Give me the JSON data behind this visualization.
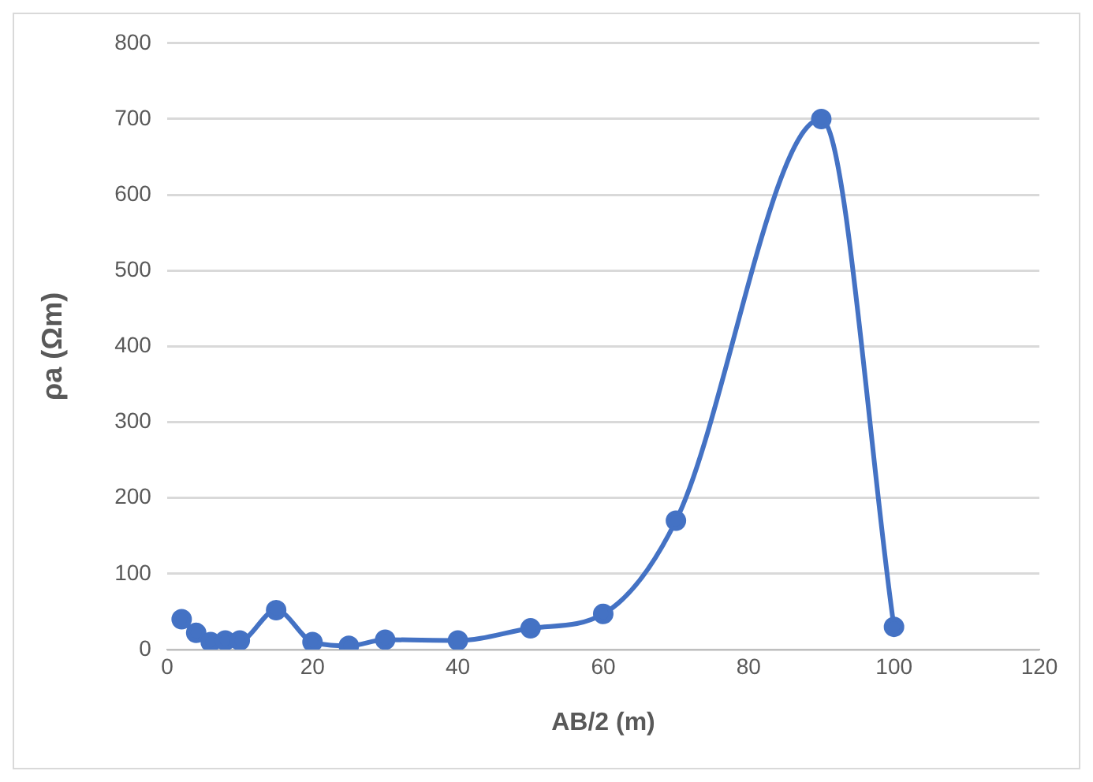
{
  "chart_data": {
    "type": "line",
    "xlabel": "AB/2 (m)",
    "ylabel": "ρa (Ωm)",
    "x": [
      2,
      4,
      6,
      8,
      10,
      15,
      20,
      25,
      30,
      40,
      50,
      60,
      70,
      90,
      100
    ],
    "series": [
      {
        "color": "#4472c4",
        "values": [
          40,
          22,
          10,
          12,
          12,
          52,
          10,
          5,
          13,
          12,
          28,
          47,
          170,
          700,
          30
        ]
      }
    ],
    "xlim": [
      0,
      120
    ],
    "xticks": [
      0,
      20,
      40,
      60,
      80,
      100,
      120
    ],
    "ylim": [
      0,
      800
    ],
    "yticks": [
      0,
      100,
      200,
      300,
      400,
      500,
      600,
      700,
      800
    ],
    "grid": "y",
    "legend": false,
    "marker": "circle",
    "line_style": "solid"
  }
}
